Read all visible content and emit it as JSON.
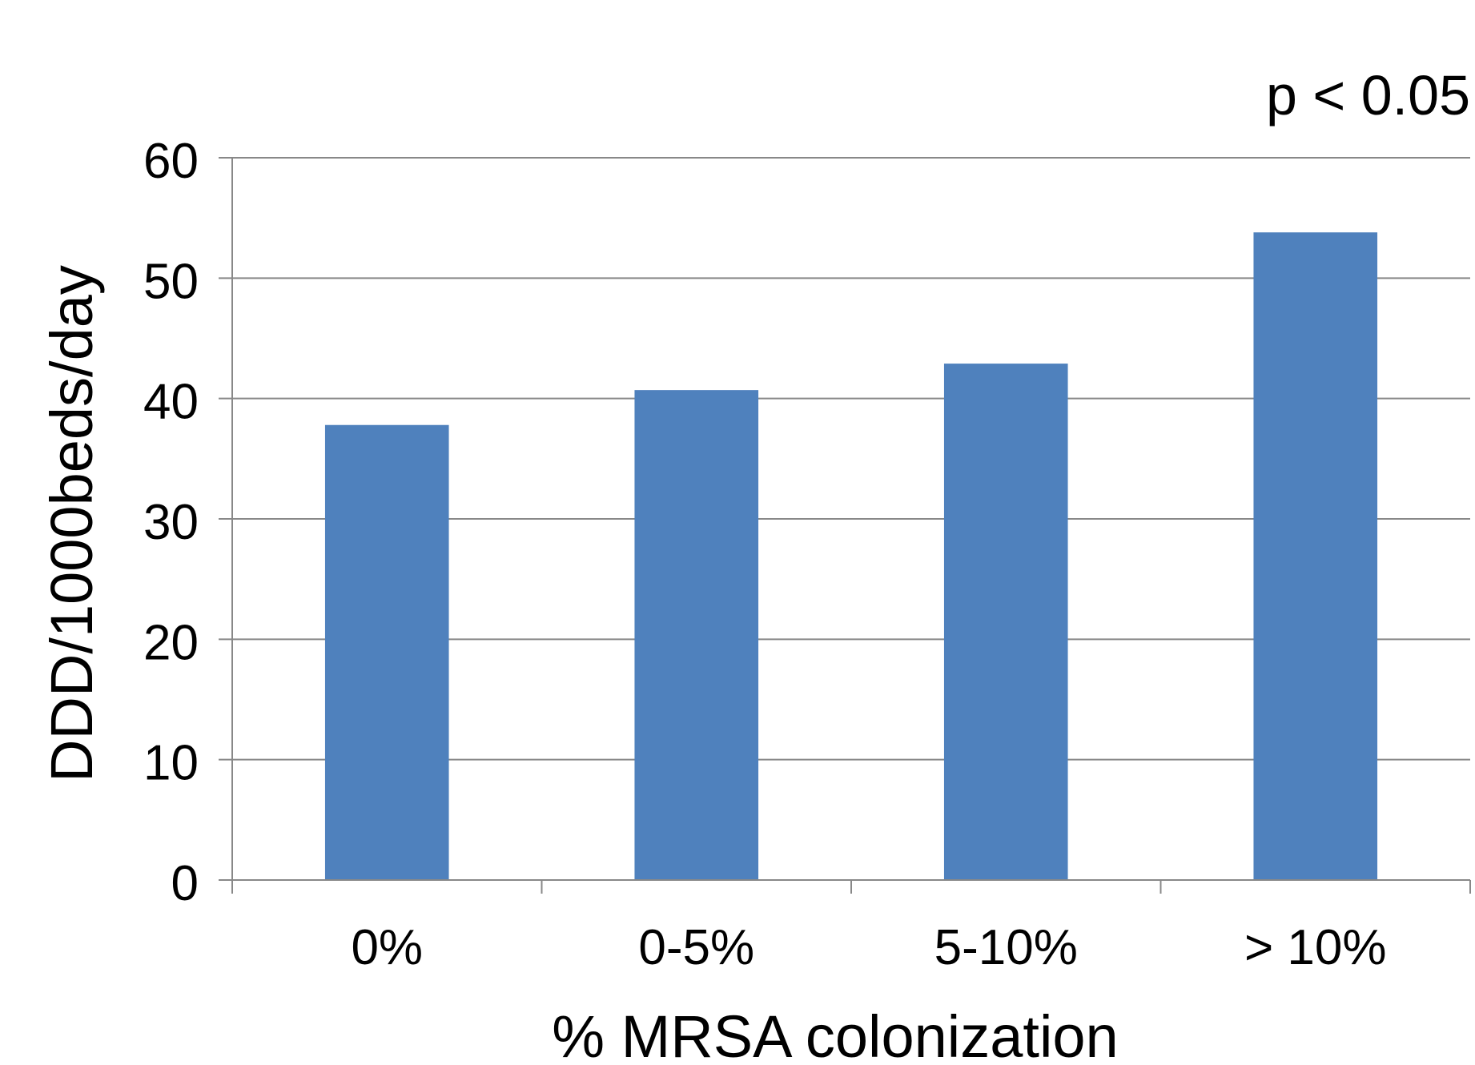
{
  "chart_data": {
    "type": "bar",
    "categories": [
      "0%",
      "0-5%",
      "5-10%",
      "> 10%"
    ],
    "values": [
      37.8,
      40.7,
      42.9,
      53.8
    ],
    "title": "",
    "annotation": "p < 0.05",
    "xlabel": "% MRSA colonization",
    "ylabel": "DDD/1000beds/day",
    "ylim": [
      0,
      60
    ],
    "yticks": [
      0,
      10,
      20,
      30,
      40,
      50,
      60
    ],
    "ytick_labels": [
      "0",
      "10",
      "20",
      "30",
      "40",
      "50",
      "60"
    ],
    "grid": true,
    "legend": "none",
    "colors": {
      "bar": "#4F81BD",
      "grid": "#888888",
      "axis": "#888888",
      "text": "#000000"
    }
  }
}
